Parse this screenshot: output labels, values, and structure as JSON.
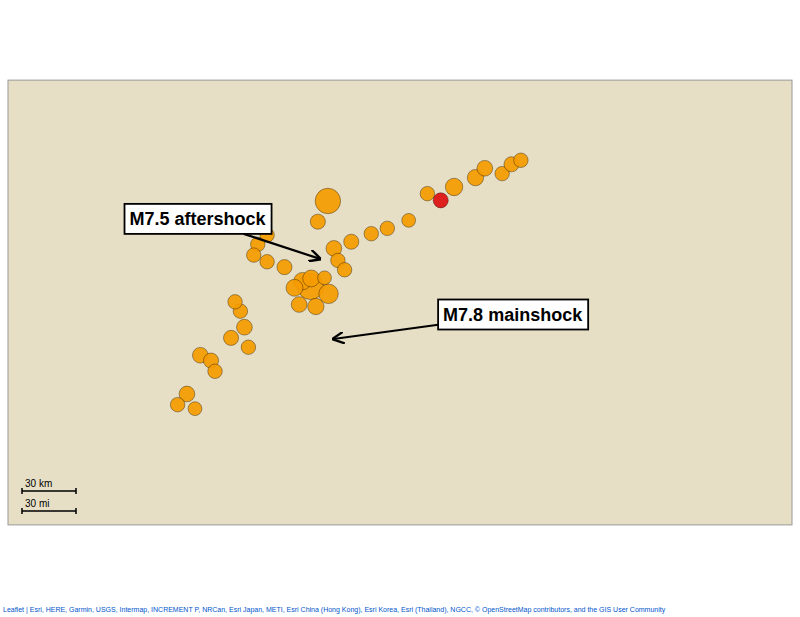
{
  "chart_data": {
    "type": "scatter",
    "xlim": [
      34.78,
      40.65
    ],
    "ylim": [
      35.45,
      38.78
    ],
    "tick_labels": false,
    "x": [
      37.175,
      37.045,
      37.18,
      36.985,
      37.05,
      36.925,
      37.085,
      36.96,
      36.85,
      37.22,
      37.35,
      37.5,
      37.62,
      37.78,
      37.25,
      37.3,
      37.15,
      37.1,
      36.72,
      36.65,
      36.62,
      36.72,
      36.55,
      36.45,
      36.58,
      36.52,
      36.48,
      36.22,
      36.3,
      36.33,
      36.12,
      36.05,
      36.18,
      38.12,
      38.28,
      38.35,
      38.48,
      38.55,
      38.62,
      37.92,
      38.02
    ],
    "values": [
      37.875,
      37.235,
      37.18,
      37.275,
      37.295,
      37.225,
      37.085,
      37.1,
      37.38,
      37.52,
      37.57,
      37.63,
      37.67,
      37.73,
      37.43,
      37.36,
      37.3,
      37.72,
      37.62,
      37.55,
      37.47,
      37.42,
      36.93,
      36.85,
      36.78,
      37.05,
      37.12,
      36.72,
      36.68,
      36.6,
      36.43,
      36.35,
      36.32,
      37.98,
      38.05,
      38.12,
      38.08,
      38.15,
      38.18,
      37.93,
      37.88
    ],
    "sizes": [
      340,
      360,
      200,
      160,
      150,
      150,
      140,
      130,
      120,
      130,
      120,
      110,
      110,
      100,
      110,
      110,
      100,
      120,
      110,
      110,
      110,
      110,
      130,
      120,
      110,
      110,
      110,
      130,
      120,
      110,
      130,
      110,
      100,
      160,
      140,
      130,
      110,
      120,
      110,
      110,
      120
    ],
    "colors": [
      "#f59b00",
      "#f59b00",
      "#f59b00",
      "#f59b00",
      "#f59b00",
      "#f59b00",
      "#f59b00",
      "#f59b00",
      "#f59b00",
      "#f59b00",
      "#f59b00",
      "#f59b00",
      "#f59b00",
      "#f59b00",
      "#f59b00",
      "#f59b00",
      "#f59b00",
      "#f59b00",
      "#f59b00",
      "#f59b00",
      "#f59b00",
      "#f59b00",
      "#f59b00",
      "#f59b00",
      "#f59b00",
      "#f59b00",
      "#f59b00",
      "#f59b00",
      "#f59b00",
      "#f59b00",
      "#f59b00",
      "#f59b00",
      "#f59b00",
      "#f59b00",
      "#f59b00",
      "#f59b00",
      "#f59b00",
      "#f59b00",
      "#f59b00",
      "#f59b00",
      "#dd1010"
    ],
    "annotations": [
      "M7.5 aftershock",
      "M7.8 mainshock",
      "30 km",
      "30 mi",
      "Leaflet | Esri, HERE, Garmin, USGS, Intermap, INCREMENT P, NRCan, Esri Japan, METI, Esri China (Hong Kong), Esri Korea, Esri (Thailand), NGCC, © OpenStreetMap contributors, and the GIS User Community"
    ]
  }
}
